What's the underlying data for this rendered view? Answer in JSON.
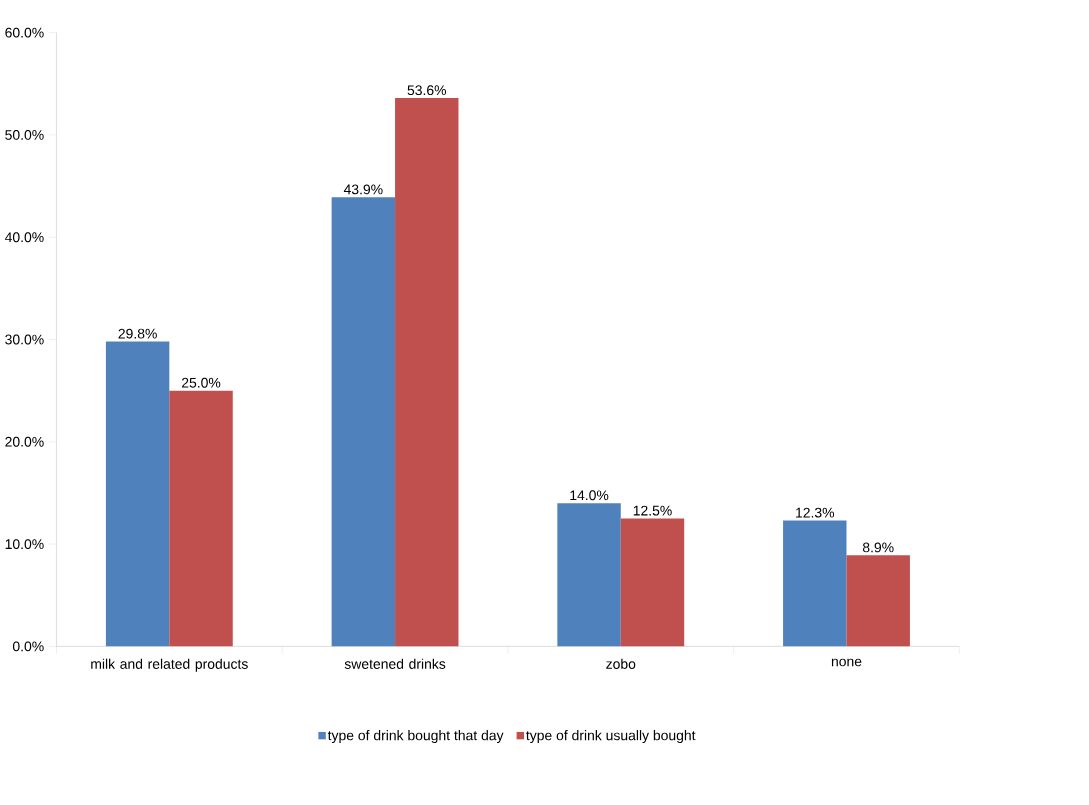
{
  "chart_data": {
    "type": "bar",
    "categories": [
      "milk and related products",
      "swetened drinks",
      "zobo",
      "none"
    ],
    "series": [
      {
        "name": "type of drink bought that day",
        "color": "#4f81bd",
        "values": [
          29.8,
          43.9,
          14.0,
          12.3
        ],
        "value_labels": [
          "29.8%",
          "43.9%",
          "14.0%",
          "12.3%"
        ]
      },
      {
        "name": "type of drink usually bought",
        "color": "#c0504d",
        "values": [
          25.0,
          53.6,
          12.5,
          8.9
        ],
        "value_labels": [
          "25.0%",
          "53.6%",
          "12.5%",
          "8.9%"
        ]
      }
    ],
    "ylim": [
      0,
      60
    ],
    "yticks": [
      {
        "value": 0,
        "label": "0.0%"
      },
      {
        "value": 10,
        "label": "10.0%"
      },
      {
        "value": 20,
        "label": "20.0%"
      },
      {
        "value": 30,
        "label": "30.0%"
      },
      {
        "value": 40,
        "label": "40.0%"
      },
      {
        "value": 50,
        "label": "50.0%"
      },
      {
        "value": 60,
        "label": "60.0%"
      }
    ],
    "grid": false,
    "legend": "bottom"
  }
}
